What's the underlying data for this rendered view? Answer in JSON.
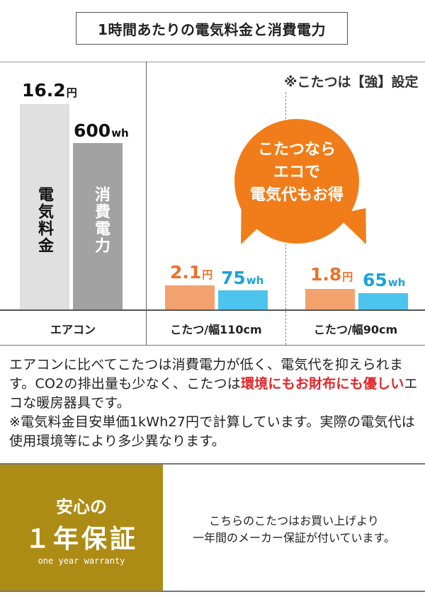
{
  "title": "1時間あたりの電気料金と消費電力",
  "note_top": "※こたつは【強】設定",
  "bubble": {
    "line1": "こたつなら",
    "line2": "エコで",
    "line3": "電気代もお得",
    "color": "#f07d19"
  },
  "chart_data": {
    "type": "bar",
    "categories": [
      "エアコン",
      "こたつ/幅110cm",
      "こたつ/幅90cm"
    ],
    "series": [
      {
        "name": "電気料金",
        "unit": "円",
        "values": [
          16.2,
          2.1,
          1.8
        ]
      },
      {
        "name": "消費電力",
        "unit": "wh",
        "values": [
          600,
          75,
          65
        ]
      }
    ],
    "labels": {
      "ac_price": "16.2",
      "ac_price_unit": "円",
      "ac_power": "600",
      "ac_power_unit": "wh",
      "k110_price": "2.1",
      "k110_price_unit": "円",
      "k110_power": "75",
      "k110_power_unit": "wh",
      "k90_price": "1.8",
      "k90_price_unit": "円",
      "k90_power": "65",
      "k90_power_unit": "wh"
    },
    "bar_text_price": "電気料金",
    "bar_text_power": "消費電力"
  },
  "description": {
    "part1": "エアコンに比べてこたつは消費電力が低く、電気代を抑えられます。CO2の排出量も少なく、こたつは",
    "highlight": "環境にもお財布にも優しい",
    "part2": "エコな暖房器具です。",
    "note": "※電気料金目安単価1kWh27円で計算しています。実際の電気代は使用環境等により多少異なります。"
  },
  "warranty": {
    "line1": "安心の",
    "line2": "１年保証",
    "line3": "one year warranty",
    "text1": "こちらのこたつはお買い上げより",
    "text2": "一年間のメーカー保証が付いています。",
    "color": "#ad8c16"
  }
}
